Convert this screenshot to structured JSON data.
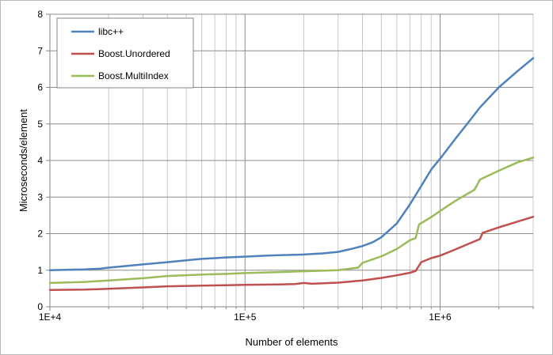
{
  "chart_data": {
    "type": "line",
    "title": "",
    "xlabel": "Number of elements",
    "ylabel": "Microseconds/element",
    "x_scale": "log",
    "xlim": [
      10000,
      3000000
    ],
    "ylim": [
      0,
      8
    ],
    "x_ticks": [
      {
        "value": 10000,
        "label": "1E+4"
      },
      {
        "value": 100000,
        "label": "1E+5"
      },
      {
        "value": 1000000,
        "label": "1E+6"
      }
    ],
    "y_ticks": [
      {
        "value": 0,
        "label": "0"
      },
      {
        "value": 1,
        "label": "1"
      },
      {
        "value": 2,
        "label": "2"
      },
      {
        "value": 3,
        "label": "3"
      },
      {
        "value": 4,
        "label": "4"
      },
      {
        "value": 5,
        "label": "5"
      },
      {
        "value": 6,
        "label": "6"
      },
      {
        "value": 7,
        "label": "7"
      },
      {
        "value": 8,
        "label": "8"
      }
    ],
    "grid": "major horizontal at each integer; vertical at log-spaced 1-9 subdivisions, darker at decades",
    "legend": "top-left",
    "series": [
      {
        "name": "libc++",
        "color": "#4f81bd",
        "points": [
          [
            10000,
            1.0
          ],
          [
            12000,
            1.01
          ],
          [
            15000,
            1.02
          ],
          [
            18000,
            1.04
          ],
          [
            20000,
            1.07
          ],
          [
            25000,
            1.12
          ],
          [
            30000,
            1.16
          ],
          [
            40000,
            1.22
          ],
          [
            50000,
            1.27
          ],
          [
            60000,
            1.31
          ],
          [
            70000,
            1.33
          ],
          [
            80000,
            1.35
          ],
          [
            100000,
            1.37
          ],
          [
            130000,
            1.4
          ],
          [
            150000,
            1.41
          ],
          [
            200000,
            1.43
          ],
          [
            250000,
            1.46
          ],
          [
            300000,
            1.5
          ],
          [
            350000,
            1.58
          ],
          [
            400000,
            1.66
          ],
          [
            450000,
            1.76
          ],
          [
            500000,
            1.9
          ],
          [
            600000,
            2.28
          ],
          [
            700000,
            2.8
          ],
          [
            800000,
            3.3
          ],
          [
            900000,
            3.75
          ],
          [
            1000000,
            4.05
          ],
          [
            1200000,
            4.6
          ],
          [
            1400000,
            5.05
          ],
          [
            1600000,
            5.45
          ],
          [
            2000000,
            6.0
          ],
          [
            2500000,
            6.45
          ],
          [
            3000000,
            6.8
          ]
        ]
      },
      {
        "name": "Boost.Unordered",
        "color": "#c0504d",
        "points": [
          [
            10000,
            0.46
          ],
          [
            15000,
            0.47
          ],
          [
            20000,
            0.49
          ],
          [
            30000,
            0.53
          ],
          [
            40000,
            0.56
          ],
          [
            60000,
            0.58
          ],
          [
            80000,
            0.59
          ],
          [
            100000,
            0.6
          ],
          [
            150000,
            0.61
          ],
          [
            180000,
            0.62
          ],
          [
            200000,
            0.65
          ],
          [
            220000,
            0.63
          ],
          [
            300000,
            0.66
          ],
          [
            400000,
            0.72
          ],
          [
            500000,
            0.79
          ],
          [
            600000,
            0.86
          ],
          [
            700000,
            0.93
          ],
          [
            750000,
            0.98
          ],
          [
            800000,
            1.22
          ],
          [
            900000,
            1.33
          ],
          [
            1000000,
            1.4
          ],
          [
            1200000,
            1.57
          ],
          [
            1400000,
            1.72
          ],
          [
            1600000,
            1.85
          ],
          [
            1650000,
            2.02
          ],
          [
            2000000,
            2.17
          ],
          [
            2500000,
            2.33
          ],
          [
            3000000,
            2.46
          ]
        ]
      },
      {
        "name": "Boost.MultiIndex",
        "color": "#9bbb59",
        "points": [
          [
            10000,
            0.65
          ],
          [
            15000,
            0.68
          ],
          [
            20000,
            0.72
          ],
          [
            30000,
            0.78
          ],
          [
            40000,
            0.84
          ],
          [
            60000,
            0.88
          ],
          [
            80000,
            0.9
          ],
          [
            100000,
            0.92
          ],
          [
            150000,
            0.95
          ],
          [
            200000,
            0.97
          ],
          [
            300000,
            1.0
          ],
          [
            380000,
            1.07
          ],
          [
            400000,
            1.2
          ],
          [
            500000,
            1.38
          ],
          [
            600000,
            1.58
          ],
          [
            700000,
            1.82
          ],
          [
            750000,
            1.88
          ],
          [
            780000,
            2.25
          ],
          [
            900000,
            2.45
          ],
          [
            1000000,
            2.62
          ],
          [
            1200000,
            2.9
          ],
          [
            1500000,
            3.2
          ],
          [
            1600000,
            3.48
          ],
          [
            2000000,
            3.72
          ],
          [
            2500000,
            3.95
          ],
          [
            3000000,
            4.08
          ]
        ]
      }
    ]
  }
}
